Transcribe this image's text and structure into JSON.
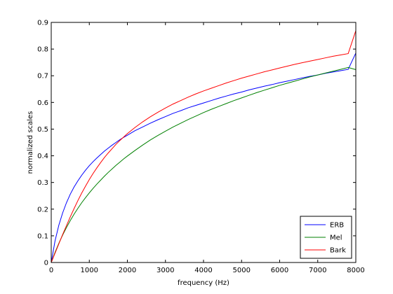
{
  "chart_data": {
    "type": "line",
    "title": "",
    "xlabel": "frequency (Hz)",
    "ylabel": "normalized scales",
    "xlim": [
      0,
      8000
    ],
    "ylim": [
      0,
      0.9
    ],
    "xticks": [
      0,
      1000,
      2000,
      3000,
      4000,
      5000,
      6000,
      7000,
      8000
    ],
    "yticks": [
      0,
      0.1,
      0.2,
      0.3,
      0.4,
      0.5,
      0.6,
      0.7,
      0.8,
      0.9
    ],
    "xtick_labels": [
      "0",
      "1000",
      "2000",
      "3000",
      "4000",
      "5000",
      "6000",
      "7000",
      "8000"
    ],
    "ytick_labels": [
      "0",
      "0.1",
      "0.2",
      "0.3",
      "0.4",
      "0.5",
      "0.6",
      "0.7",
      "0.8",
      "0.9"
    ],
    "grid": false,
    "legend_position": "bottom-right",
    "x": [
      0,
      100,
      200,
      300,
      400,
      500,
      600,
      700,
      800,
      900,
      1000,
      1100,
      1200,
      1300,
      1400,
      1500,
      1600,
      1700,
      1800,
      1900,
      2000,
      2200,
      2400,
      2600,
      2800,
      3000,
      3200,
      3400,
      3600,
      3800,
      4000,
      4200,
      4400,
      4600,
      4800,
      5000,
      5200,
      5400,
      5600,
      5800,
      6000,
      6200,
      6400,
      6600,
      6800,
      7000,
      7200,
      7400,
      7600,
      7800,
      8000
    ],
    "series": [
      {
        "name": "ERB",
        "color": "#0000ff",
        "values": [
          0,
          0.081,
          0.14,
          0.186,
          0.224,
          0.256,
          0.283,
          0.306,
          0.327,
          0.346,
          0.363,
          0.378,
          0.392,
          0.405,
          0.418,
          0.429,
          0.44,
          0.45,
          0.46,
          0.469,
          0.477,
          0.494,
          0.508,
          0.522,
          0.535,
          0.547,
          0.559,
          0.569,
          0.58,
          0.589,
          0.598,
          0.607,
          0.616,
          0.624,
          0.632,
          0.639,
          0.647,
          0.654,
          0.661,
          0.667,
          0.674,
          0.68,
          0.686,
          0.692,
          0.698,
          0.703,
          0.709,
          0.714,
          0.719,
          0.724,
          0.785
        ]
      },
      {
        "name": "Mel",
        "color": "#008000",
        "values": [
          0,
          0.038,
          0.072,
          0.103,
          0.131,
          0.157,
          0.181,
          0.203,
          0.224,
          0.243,
          0.261,
          0.278,
          0.294,
          0.309,
          0.324,
          0.338,
          0.351,
          0.364,
          0.376,
          0.388,
          0.399,
          0.42,
          0.44,
          0.459,
          0.476,
          0.492,
          0.508,
          0.522,
          0.536,
          0.549,
          0.562,
          0.574,
          0.585,
          0.596,
          0.607,
          0.617,
          0.627,
          0.637,
          0.646,
          0.655,
          0.664,
          0.672,
          0.68,
          0.688,
          0.696,
          0.703,
          0.71,
          0.717,
          0.724,
          0.731,
          0.723
        ]
      },
      {
        "name": "Bark",
        "color": "#ff0000",
        "values": [
          0,
          0.035,
          0.07,
          0.105,
          0.138,
          0.171,
          0.202,
          0.232,
          0.26,
          0.286,
          0.311,
          0.334,
          0.355,
          0.375,
          0.394,
          0.411,
          0.427,
          0.443,
          0.457,
          0.47,
          0.483,
          0.506,
          0.527,
          0.546,
          0.563,
          0.579,
          0.594,
          0.607,
          0.62,
          0.632,
          0.643,
          0.653,
          0.663,
          0.673,
          0.682,
          0.691,
          0.699,
          0.707,
          0.715,
          0.722,
          0.729,
          0.736,
          0.743,
          0.749,
          0.755,
          0.761,
          0.767,
          0.773,
          0.778,
          0.783,
          0.869
        ]
      }
    ]
  }
}
